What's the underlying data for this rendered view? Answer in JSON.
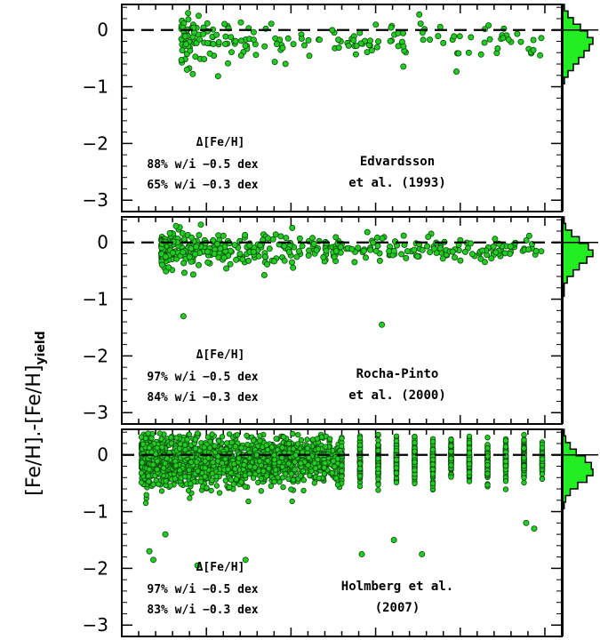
{
  "figure": {
    "ylabel_main": "[Fe/H].-[Fe/H]",
    "ylabel_sub": "yield"
  },
  "colors": {
    "marker_fill": "#22cc22",
    "marker_edge": "#0a4a0a",
    "hist_fill": "#22ee22"
  },
  "chart_data": [
    {
      "type": "scatter",
      "ylim": [
        -3.2,
        0.45
      ],
      "yticks": [
        "0",
        "−1",
        "−2",
        "−3"
      ],
      "reference_line": 0,
      "stats": {
        "header": "Δ[Fe/H]",
        "line1": "88% w/i −0.5 dex",
        "line2": "65% w/i −0.3 dex"
      },
      "source": {
        "line1": "Edvardsson",
        "line2": "et al. (1993)"
      },
      "n_points": 190,
      "x_range": [
        0.1,
        1.0
      ],
      "y_mean": -0.2,
      "y_spread": 0.24,
      "outliers": [],
      "histogram": [
        1,
        3,
        6,
        10,
        14,
        17,
        15,
        12,
        9,
        6,
        3,
        1
      ]
    },
    {
      "type": "scatter",
      "ylim": [
        -3.2,
        0.45
      ],
      "yticks": [
        "0",
        "−1",
        "−2",
        "−3"
      ],
      "reference_line": 0,
      "stats": {
        "header": "Δ[Fe/H]",
        "line1": "97% w/i −0.5 dex",
        "line2": "84% w/i −0.3 dex"
      },
      "source": {
        "line1": "Rocha-Pinto",
        "line2": "et al. (2000)"
      },
      "n_points": 420,
      "x_range": [
        0.05,
        1.0
      ],
      "y_mean": -0.12,
      "y_spread": 0.17,
      "outliers": [
        [
          0.105,
          -1.3
        ],
        [
          0.6,
          -1.45
        ]
      ],
      "histogram": [
        1,
        2,
        6,
        11,
        17,
        20,
        16,
        11,
        7,
        3,
        1,
        1
      ]
    },
    {
      "type": "scatter",
      "ylim": [
        -3.2,
        0.45
      ],
      "yticks": [
        "0",
        "−1",
        "−2",
        "−3"
      ],
      "reference_line": 0,
      "stats": {
        "header": "Δ[Fe/H]",
        "line1": "97% w/i −0.5 dex",
        "line2": "83% w/i −0.3 dex"
      },
      "source": {
        "line1": "Holmberg et al.",
        "line2": "(2007)"
      },
      "n_points": 2600,
      "x_range": [
        0.0,
        1.0
      ],
      "y_mean": -0.1,
      "y_spread": 0.24,
      "outliers": [
        [
          0.02,
          -1.7
        ],
        [
          0.03,
          -1.85
        ],
        [
          0.06,
          -1.4
        ],
        [
          0.14,
          -1.95
        ],
        [
          0.26,
          -1.85
        ],
        [
          0.55,
          -1.75
        ],
        [
          0.63,
          -1.5
        ],
        [
          0.7,
          -1.75
        ],
        [
          0.96,
          -1.2
        ],
        [
          0.98,
          -1.3
        ]
      ],
      "histogram": [
        1,
        2,
        5,
        9,
        15,
        19,
        20,
        16,
        10,
        5,
        2,
        1
      ]
    }
  ]
}
